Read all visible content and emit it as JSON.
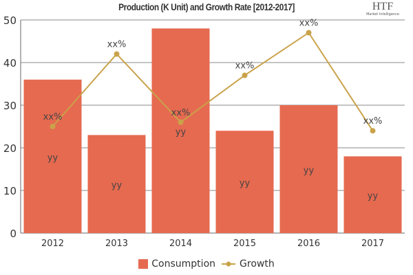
{
  "chart_data": {
    "type": "bar",
    "title": "Production (K Unit) and Growth Rate [2012-2017]",
    "categories": [
      "2012",
      "2013",
      "2014",
      "2015",
      "2016",
      "2017"
    ],
    "ylim": [
      0,
      50
    ],
    "yticks": [
      0,
      10,
      20,
      30,
      40,
      50
    ],
    "grid": true,
    "legend_position": "bottom",
    "series": [
      {
        "name": "Consumption",
        "type": "bar",
        "color": "#E66A50",
        "values": [
          36,
          23,
          48,
          24,
          30,
          18
        ],
        "labels": [
          "yy",
          "yy",
          "yy",
          "yy",
          "yy",
          "yy"
        ]
      },
      {
        "name": "Growth",
        "type": "line",
        "color": "#C9A24A",
        "values": [
          25,
          42,
          26,
          37,
          47,
          24
        ],
        "labels": [
          "xx%",
          "xx%",
          "xx%",
          "xx%",
          "xx%",
          "xx%"
        ]
      }
    ]
  },
  "logo": {
    "text": "HTF",
    "subtext": "Market Intelligence"
  }
}
